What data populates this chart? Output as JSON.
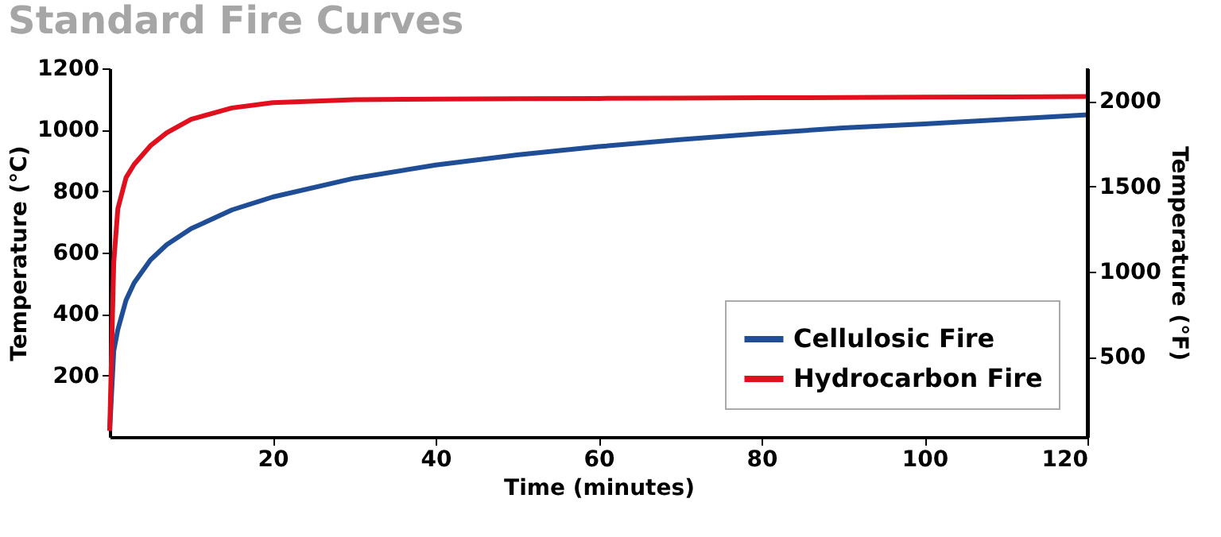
{
  "chart_data": {
    "type": "line",
    "title": "Standard Fire Curves",
    "xlabel": "Time (minutes)",
    "ylabel": "Temperature (°C)",
    "y2label": "Temperature (°F)",
    "x": [
      0,
      0.5,
      1,
      2,
      3,
      5,
      7,
      10,
      15,
      20,
      30,
      40,
      50,
      60,
      70,
      80,
      90,
      100,
      110,
      120
    ],
    "series": [
      {
        "name": "Cellulosic Fire",
        "color": "#1f4e96",
        "values": [
          20,
          280,
          349,
          445,
          502,
          576,
          626,
          678,
          739,
          781,
          842,
          885,
          918,
          945,
          968,
          988,
          1006,
          1019,
          1034,
          1049
        ]
      },
      {
        "name": "Hydrocarbon Fire",
        "color": "#e0101e",
        "values": [
          20,
          569,
          743,
          844,
          887,
          948,
          990,
          1034,
          1071,
          1088,
          1098,
          1100,
          1101,
          1102,
          1103,
          1104,
          1105,
          1106,
          1107,
          1108
        ]
      }
    ],
    "xlim": [
      0,
      120
    ],
    "xticks": [
      20,
      40,
      60,
      80,
      100,
      120
    ],
    "ylim": [
      0,
      1200
    ],
    "yticks": [
      200,
      400,
      600,
      800,
      1000,
      1200
    ],
    "y2lim": [
      32,
      2192
    ],
    "y2ticks": [
      500,
      1000,
      1500,
      2000
    ],
    "grid": false,
    "legend": "bottom right",
    "line_style": "solid",
    "marker": "none"
  }
}
